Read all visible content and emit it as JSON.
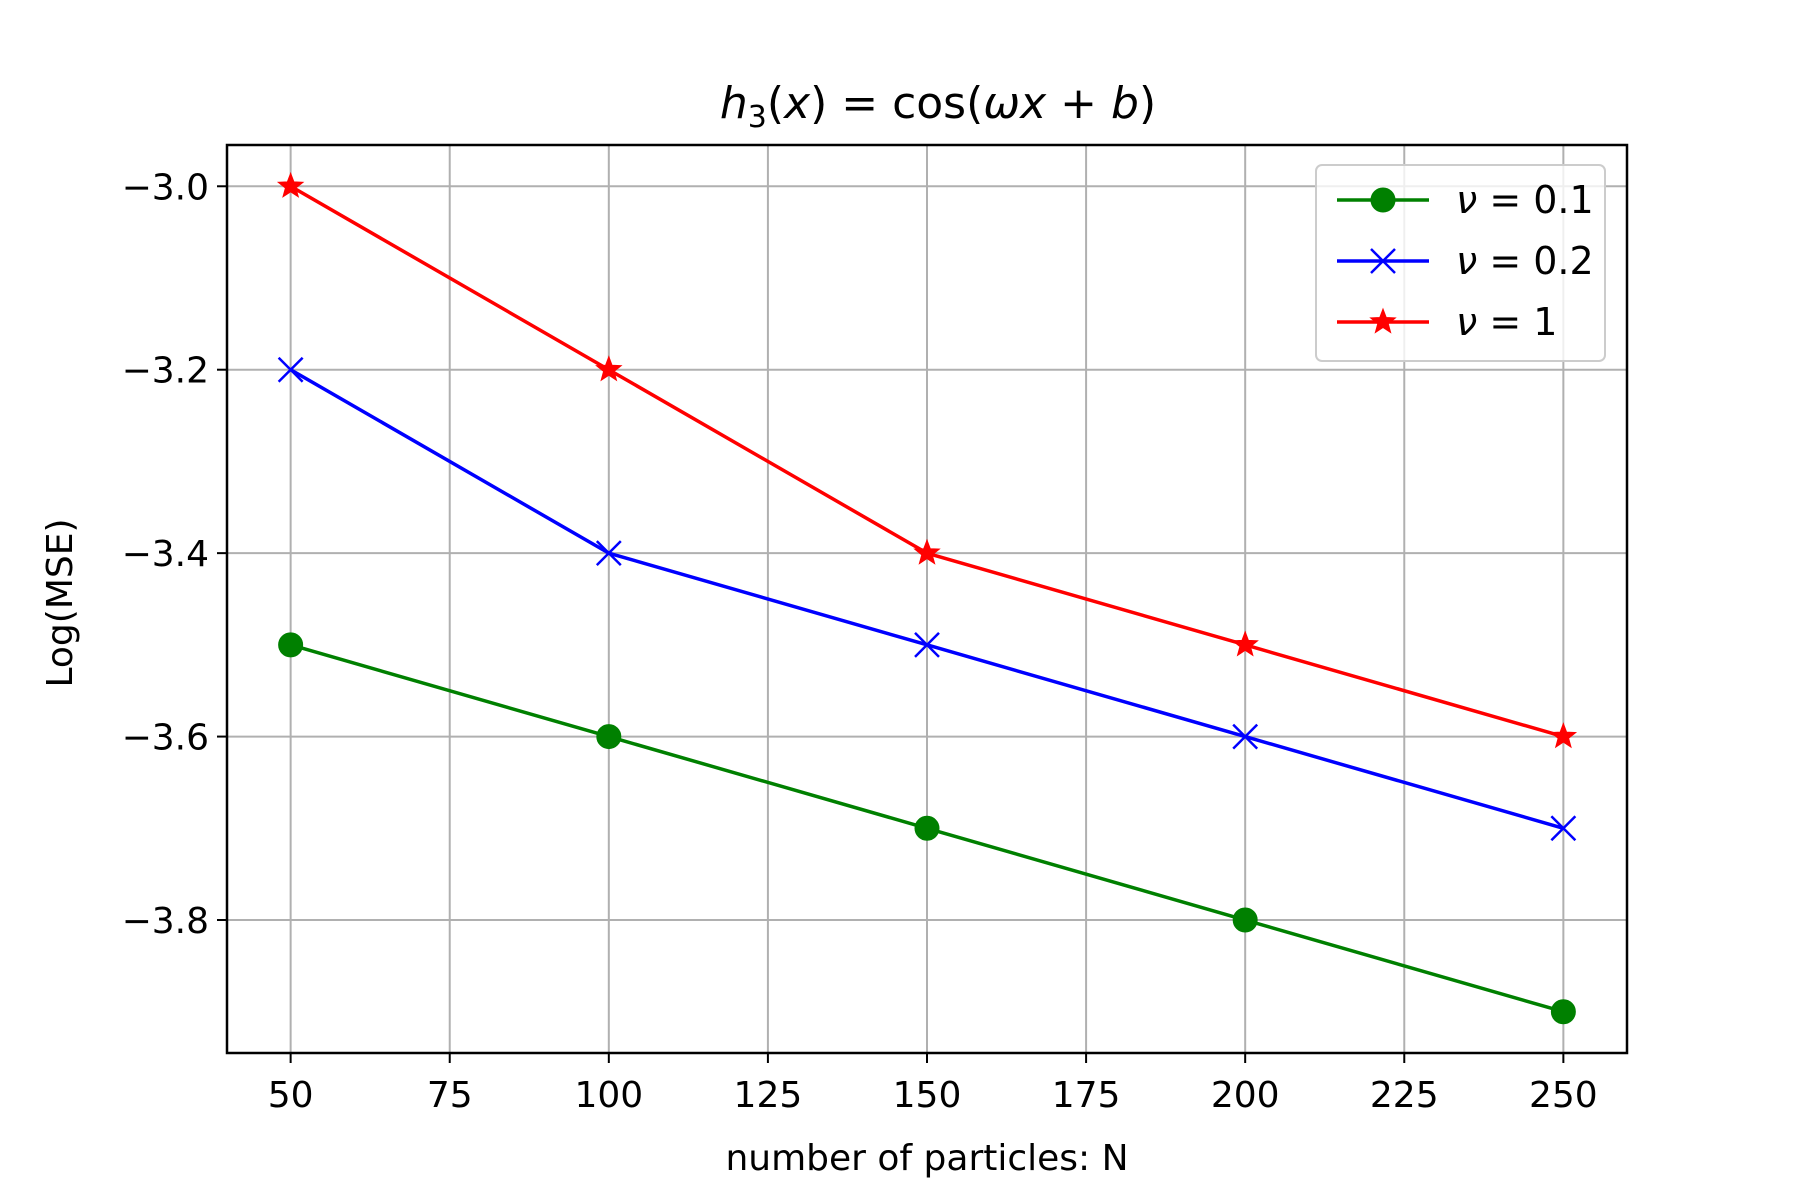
{
  "chart_data": {
    "type": "line",
    "title": {
      "h": "h",
      "sub": "3",
      "x_open": "(",
      "x": "x",
      "x_close": ") = cos(",
      "omega": "ω",
      "x2": "x",
      "plus": " + ",
      "b": "b",
      "close": ")"
    },
    "xlabel": "number of particles: N",
    "ylabel": "Log(MSE)",
    "x": [
      50,
      100,
      150,
      200,
      250
    ],
    "xlim": [
      40,
      260
    ],
    "ylim": [
      -3.945,
      -2.955
    ],
    "xticks": [
      50,
      75,
      100,
      125,
      150,
      175,
      200,
      225,
      250
    ],
    "yticks": [
      -3.0,
      -3.2,
      -3.4,
      -3.6,
      -3.8
    ],
    "xtick_labels": [
      "50",
      "75",
      "100",
      "125",
      "150",
      "175",
      "200",
      "225",
      "250"
    ],
    "ytick_labels": [
      "−3.0",
      "−3.2",
      "−3.4",
      "−3.6",
      "−3.8"
    ],
    "grid": true,
    "legend_position": "top-right",
    "series": [
      {
        "symbol": "ν",
        "eq": " = 0.1",
        "color": "#008000",
        "marker": "circle",
        "values": [
          -3.5,
          -3.6,
          -3.7,
          -3.8,
          -3.9
        ]
      },
      {
        "symbol": "ν",
        "eq": " = 0.2",
        "color": "#0000ff",
        "marker": "x",
        "values": [
          -3.2,
          -3.4,
          -3.5,
          -3.6,
          -3.7
        ]
      },
      {
        "symbol": "ν",
        "eq": " = 1",
        "color": "#ff0000",
        "marker": "star",
        "values": [
          -3.0,
          -3.2,
          -3.4,
          -3.5,
          -3.6
        ]
      }
    ]
  }
}
